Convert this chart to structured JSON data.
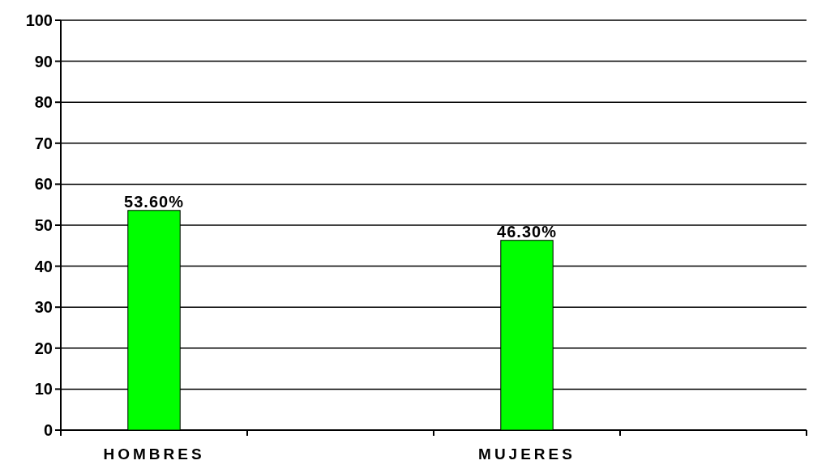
{
  "chart_data": {
    "type": "bar",
    "categories": [
      "HOMBRES",
      null,
      "MUJERES",
      null
    ],
    "series": [
      {
        "color": "#00ff00",
        "values": [
          53.6,
          null,
          46.3,
          null
        ],
        "value_labels": [
          "53.60%",
          null,
          "46.30%",
          null
        ]
      }
    ],
    "ylim": [
      0,
      100
    ],
    "yticks": [
      0,
      10,
      20,
      30,
      40,
      50,
      60,
      70,
      80,
      90,
      100
    ],
    "grid": "y"
  }
}
